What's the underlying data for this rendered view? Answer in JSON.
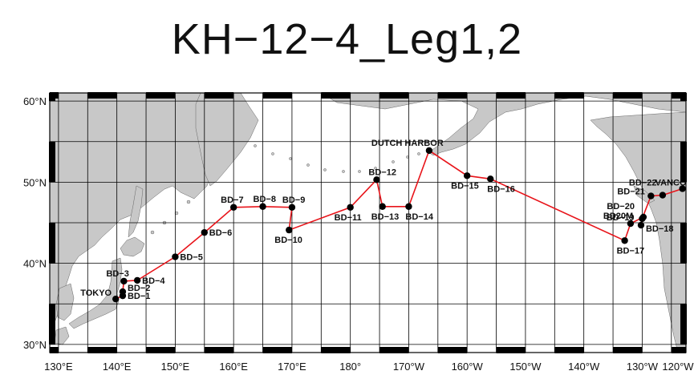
{
  "title": "KH−12−4_Leg1,2",
  "colors": {
    "land": "#c8c8c8",
    "track": "#e8141a",
    "station": "#000000",
    "grid": "#000000"
  },
  "axes": {
    "lon_min": 128.5,
    "lon_max": 237.5,
    "lat_min": 29.0,
    "lat_max": 61.0,
    "x_ticks": [
      {
        "lon": 130,
        "label": "130°E"
      },
      {
        "lon": 140,
        "label": "140°E"
      },
      {
        "lon": 150,
        "label": "150°E"
      },
      {
        "lon": 160,
        "label": "160°E"
      },
      {
        "lon": 170,
        "label": "170°E"
      },
      {
        "lon": 180,
        "label": "180°"
      },
      {
        "lon": 190,
        "label": "170°W"
      },
      {
        "lon": 200,
        "label": "160°W"
      },
      {
        "lon": 210,
        "label": "150°W"
      },
      {
        "lon": 220,
        "label": "140°W"
      },
      {
        "lon": 230,
        "label": "130°W"
      },
      {
        "lon": 240,
        "label": "120°W"
      }
    ],
    "y_ticks": [
      {
        "lat": 60,
        "label": "60°N"
      },
      {
        "lat": 50,
        "label": "50°N"
      },
      {
        "lat": 40,
        "label": "40°N"
      },
      {
        "lat": 30,
        "label": "30°N"
      }
    ]
  },
  "ports": [
    {
      "name": "TOKYO",
      "lon": 139.8,
      "lat": 35.6
    },
    {
      "name": "DUTCH HARBOR",
      "lon": 193.5,
      "lat": 53.9
    },
    {
      "name": "VANCOUVER",
      "lon": 236.9,
      "lat": 49.2
    }
  ],
  "stations": [
    {
      "name": "BD−1",
      "lon": 141.0,
      "lat": 36.0
    },
    {
      "name": "BD−2",
      "lon": 141.0,
      "lat": 36.5
    },
    {
      "name": "BD−3",
      "lon": 141.2,
      "lat": 37.8
    },
    {
      "name": "BD−4",
      "lon": 143.5,
      "lat": 37.9
    },
    {
      "name": "BD−5",
      "lon": 150.0,
      "lat": 40.8
    },
    {
      "name": "BD−6",
      "lon": 155.0,
      "lat": 43.8
    },
    {
      "name": "BD−7",
      "lon": 160.0,
      "lat": 46.9
    },
    {
      "name": "BD−8",
      "lon": 165.0,
      "lat": 47.0
    },
    {
      "name": "BD−9",
      "lon": 170.0,
      "lat": 46.9
    },
    {
      "name": "BD−10",
      "lon": 169.5,
      "lat": 44.1
    },
    {
      "name": "BD−11",
      "lon": 180.0,
      "lat": 46.9
    },
    {
      "name": "BD−12",
      "lon": 184.5,
      "lat": 50.3
    },
    {
      "name": "BD−13",
      "lon": 185.5,
      "lat": 47.0
    },
    {
      "name": "BD−14",
      "lon": 190.0,
      "lat": 47.0
    },
    {
      "name": "BD−15",
      "lon": 200.0,
      "lat": 50.8
    },
    {
      "name": "BD−16",
      "lon": 204.0,
      "lat": 50.4
    },
    {
      "name": "BD−17",
      "lon": 227.0,
      "lat": 42.8
    },
    {
      "name": "BD−18",
      "lon": 229.8,
      "lat": 44.7
    },
    {
      "name": "BD−19",
      "lon": 230.2,
      "lat": 45.7
    },
    {
      "name": "BD20M",
      "lon": 228.0,
      "lat": 44.9
    },
    {
      "name": "BD−20",
      "lon": 230.0,
      "lat": 45.5
    },
    {
      "name": "BD−21",
      "lon": 231.5,
      "lat": 48.3
    },
    {
      "name": "BD−22",
      "lon": 233.5,
      "lat": 48.4
    }
  ]
}
